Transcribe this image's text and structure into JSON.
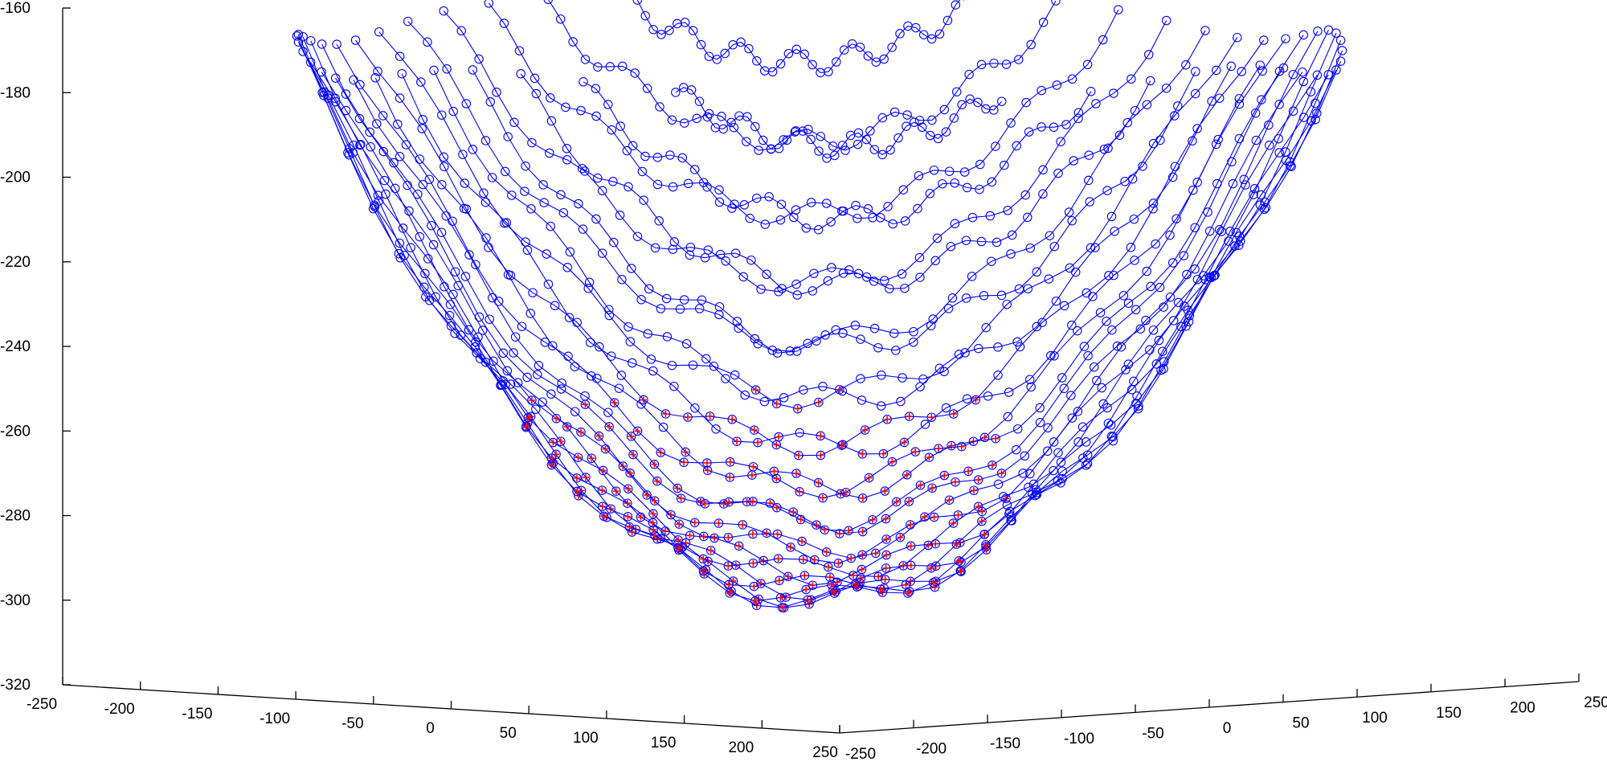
{
  "chart_data": {
    "type": "scatter",
    "title": "",
    "xlabel": "",
    "ylabel": "",
    "zlabel": "",
    "x_axis": {
      "range": [
        -250,
        250
      ],
      "ticks": [
        -250,
        -200,
        -150,
        -100,
        -50,
        0,
        50,
        100,
        150,
        200,
        250
      ],
      "tick_labels": [
        "-250",
        "-200",
        "-150",
        "-100",
        "-50",
        "0",
        "50",
        "100",
        "150",
        "200",
        "250"
      ]
    },
    "y_axis": {
      "range": [
        -250,
        250
      ],
      "ticks": [
        -250,
        -200,
        -150,
        -100,
        -50,
        0,
        50,
        100,
        150,
        200,
        250
      ],
      "tick_labels": [
        "-250",
        "-200",
        "-150",
        "-100",
        "-50",
        "0",
        "50",
        "100",
        "150",
        "200",
        "250"
      ]
    },
    "z_axis": {
      "range": [
        -320,
        -160
      ],
      "ticks": [
        -320,
        -300,
        -280,
        -260,
        -240,
        -220,
        -200,
        -180,
        -160
      ],
      "tick_labels": [
        "-320",
        "-300",
        "-280",
        "-260",
        "-240",
        "-220",
        "-200",
        "-180",
        "-160"
      ]
    },
    "grid": false,
    "legend": "none",
    "surface": {
      "z_at_center": -300,
      "z_at_edge": -170,
      "radius": 240
    },
    "series": [
      {
        "marker": "circle",
        "line": true,
        "color": "#0000ff",
        "points": "all surface grid nodes, connected along rows"
      },
      {
        "marker": "plus",
        "line": false,
        "color": "#ff0000",
        "points": "nodes with z below about -255 on the near (red) side"
      }
    ],
    "colors": {
      "blue": "#0000ff",
      "red": "#ff0000",
      "axis": "#000000"
    }
  }
}
